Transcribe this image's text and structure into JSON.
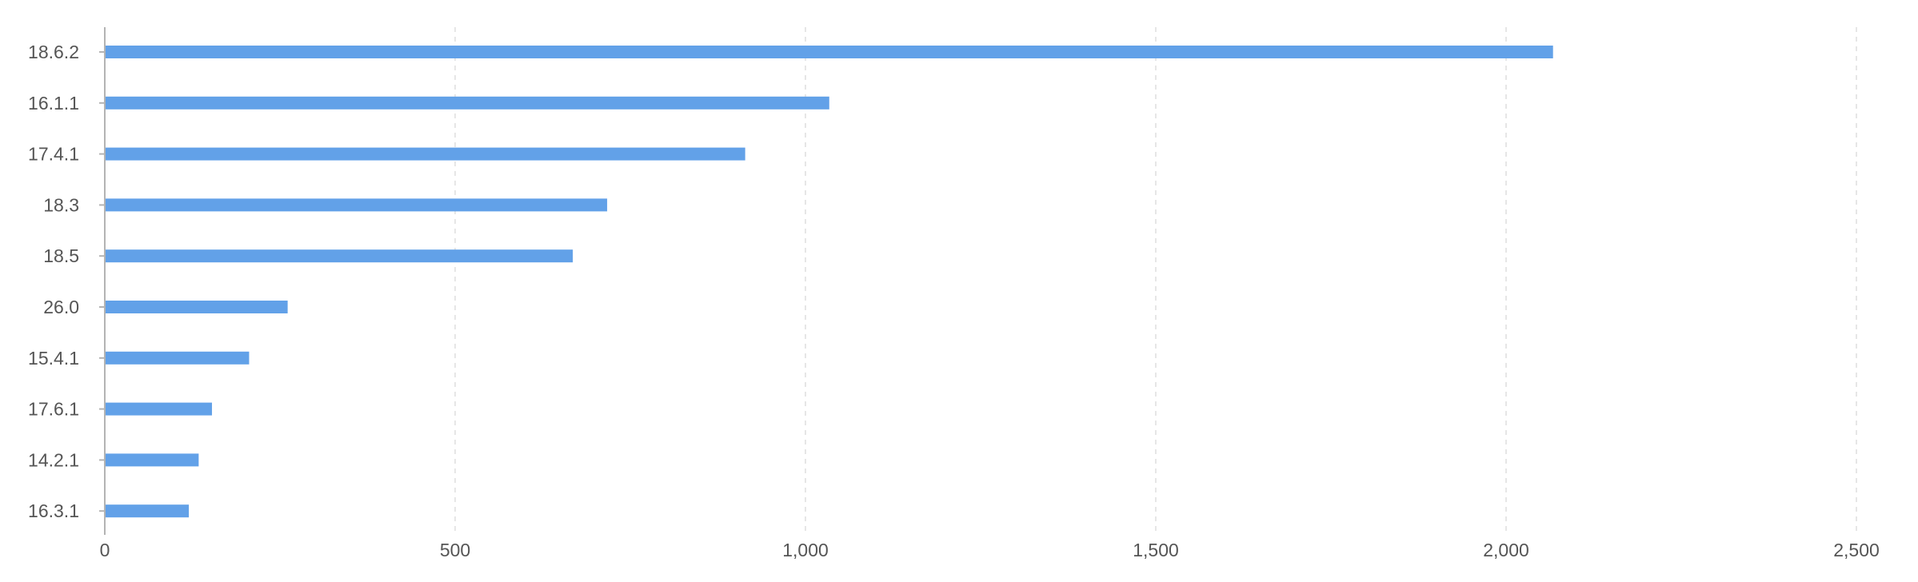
{
  "chart_data": {
    "type": "bar",
    "orientation": "horizontal",
    "title": "",
    "xlabel": "",
    "ylabel": "",
    "categories": [
      "18.6.2",
      "16.1.1",
      "17.4.1",
      "18.3",
      "18.5",
      "26.0",
      "15.4.1",
      "17.6.1",
      "14.2.1",
      "16.3.1"
    ],
    "values": [
      2067,
      1034,
      914,
      717,
      668,
      261,
      206,
      153,
      134,
      120
    ],
    "xlim": [
      0,
      2500
    ],
    "x_ticks": [
      0,
      500,
      1000,
      1500,
      2000,
      2500
    ],
    "x_tick_labels": [
      "0",
      "500",
      "1,000",
      "1,500",
      "2,000",
      "2,500"
    ],
    "grid": "vertical dashed",
    "legend": "none",
    "colors": {
      "bar": "#62a1e8",
      "grid": "#e6e6e6",
      "axis": "#b3b3b3",
      "text": "#555555"
    }
  }
}
